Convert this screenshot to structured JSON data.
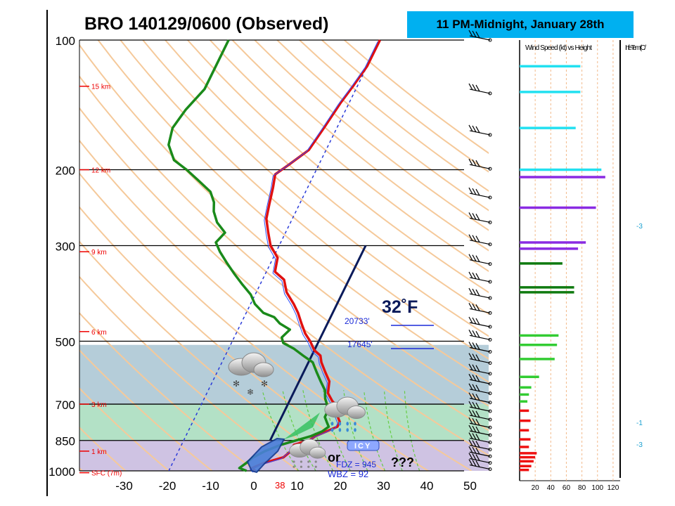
{
  "banner": {
    "text": "11 PM-Midnight, January 28th"
  },
  "title": {
    "text": "BRO   140129/0600  (Observed)"
  },
  "colors": {
    "temperature": "#e01010",
    "dewpoint": "#1a8a1a",
    "virtual_temp": "#3050ff",
    "freezing_line": "#0a1a5a",
    "snow_layer": "#a8c4d2",
    "melt_layer": "#a6dcbc",
    "refreeze_layer": "#c7b8de",
    "isotherm_dash": "#2a3ad8",
    "dry_adiabat": "#f5c99a",
    "moist_adiabat": "#66cc44",
    "wind_cyan": "#22e0f0",
    "wind_purple": "#8a2be2",
    "wind_dkgreen": "#0f7a0f",
    "wind_green": "#33cc33",
    "wind_red": "#ee1111"
  },
  "chart_data": {
    "type": "line",
    "title": "BRO   140129/0600  (Observed)",
    "xlabel": "",
    "ylabel": "",
    "xlim": [
      -40,
      50
    ],
    "ylim": [
      1000,
      100
    ],
    "y_scale": "log",
    "grid": true,
    "x_ticks": [
      "-30",
      "-20",
      "-10",
      "0",
      "10",
      "20",
      "30",
      "40",
      "50"
    ],
    "y_ticks": [
      "100",
      "200",
      "300",
      "500",
      "700",
      "850",
      "1000"
    ],
    "height_labels": [
      {
        "label": "15 km",
        "p": 128
      },
      {
        "label": "12 km",
        "p": 200
      },
      {
        "label": "9 km",
        "p": 310
      },
      {
        "label": "6 km",
        "p": 475
      },
      {
        "label": "3 km",
        "p": 700
      },
      {
        "label": "1 km",
        "p": 900
      },
      {
        "label": "SFC (7m)",
        "p": 1010
      }
    ],
    "series": [
      {
        "name": "Temperature",
        "points": [
          [
            0,
            1000
          ],
          [
            -1,
            985
          ],
          [
            1,
            960
          ],
          [
            5,
            930
          ],
          [
            6,
            900
          ],
          [
            6,
            870
          ],
          [
            9,
            850
          ],
          [
            10,
            830
          ],
          [
            12,
            810
          ],
          [
            14,
            790
          ],
          [
            14,
            770
          ],
          [
            13,
            750
          ],
          [
            12,
            730
          ],
          [
            11,
            700
          ],
          [
            10,
            690
          ],
          [
            8,
            660
          ],
          [
            7,
            620
          ],
          [
            5,
            590
          ],
          [
            3,
            560
          ],
          [
            2,
            540
          ],
          [
            0,
            525
          ],
          [
            -2,
            500
          ],
          [
            -4,
            480
          ],
          [
            -6,
            455
          ],
          [
            -8,
            430
          ],
          [
            -10,
            410
          ],
          [
            -13,
            385
          ],
          [
            -15,
            360
          ],
          [
            -18,
            345
          ],
          [
            -19,
            320
          ],
          [
            -22,
            300
          ],
          [
            -24,
            280
          ],
          [
            -26,
            260
          ],
          [
            -27,
            240
          ],
          [
            -28,
            220
          ],
          [
            -29,
            205
          ],
          [
            -27,
            195
          ],
          [
            -24,
            180
          ],
          [
            -23,
            160
          ],
          [
            -22,
            140
          ],
          [
            -21,
            128
          ],
          [
            -20,
            115
          ],
          [
            -20,
            100
          ]
        ]
      },
      {
        "name": "Dewpoint",
        "points": [
          [
            -2,
            1000
          ],
          [
            -4,
            985
          ],
          [
            -3,
            960
          ],
          [
            -2,
            930
          ],
          [
            0,
            900
          ],
          [
            3,
            870
          ],
          [
            6,
            850
          ],
          [
            9,
            830
          ],
          [
            11,
            810
          ],
          [
            12,
            790
          ],
          [
            11,
            770
          ],
          [
            10,
            750
          ],
          [
            10,
            730
          ],
          [
            9,
            700
          ],
          [
            8,
            680
          ],
          [
            7,
            650
          ],
          [
            5,
            620
          ],
          [
            3,
            590
          ],
          [
            1,
            560
          ],
          [
            -2,
            540
          ],
          [
            -5,
            520
          ],
          [
            -8,
            505
          ],
          [
            -9,
            490
          ],
          [
            -8,
            470
          ],
          [
            -11,
            455
          ],
          [
            -13,
            440
          ],
          [
            -16,
            430
          ],
          [
            -19,
            410
          ],
          [
            -21,
            390
          ],
          [
            -24,
            370
          ],
          [
            -27,
            350
          ],
          [
            -30,
            330
          ],
          [
            -33,
            310
          ],
          [
            -35,
            295
          ],
          [
            -34,
            280
          ],
          [
            -37,
            265
          ],
          [
            -39,
            250
          ],
          [
            -40,
            238
          ],
          [
            -42,
            225
          ],
          [
            -46,
            212
          ],
          [
            -50,
            200
          ],
          [
            -54,
            190
          ],
          [
            -57,
            175
          ],
          [
            -58,
            160
          ],
          [
            -57,
            145
          ],
          [
            -55,
            130
          ],
          [
            -55,
            115
          ],
          [
            -55,
            100
          ]
        ]
      }
    ],
    "isotherm_32F": {
      "label": "32˚F",
      "temp_c": 0,
      "p_top": 300,
      "p_bottom": 850
    },
    "isotherm_dashed": {
      "temp_c": -20
    },
    "layers": [
      {
        "name": "snow",
        "p_top": 510,
        "p_bottom": 700
      },
      {
        "name": "melting",
        "p_top": 700,
        "p_bottom": 850
      },
      {
        "name": "refreezing",
        "p_top": 850,
        "p_bottom": 1000
      }
    ],
    "annotations": [
      {
        "text": "20733'",
        "p": 470,
        "t": 10
      },
      {
        "text": "17645'",
        "p": 505,
        "t": 10
      },
      {
        "text": "ICY",
        "p": 900,
        "t": 13
      },
      {
        "text": "or",
        "p": 930,
        "t": 1
      },
      {
        "text": "???",
        "p": 940,
        "t": 22
      },
      {
        "text": "FDZ = 945",
        "p": 955,
        "t": 7
      },
      {
        "text": "WBZ = 92",
        "p": 975,
        "t": 7
      },
      {
        "text": "38",
        "p": 1030,
        "t": 0
      }
    ],
    "wind_profile": {
      "title": "Wind Speed (kt) vs Height",
      "x_ticks": [
        "20",
        "40",
        "60",
        "80",
        "100",
        "120"
      ],
      "xlim": [
        0,
        130
      ],
      "bars": [
        {
          "p": 115,
          "kt": 78,
          "color": "cyan"
        },
        {
          "p": 132,
          "kt": 78,
          "color": "cyan"
        },
        {
          "p": 160,
          "kt": 72,
          "color": "cyan"
        },
        {
          "p": 200,
          "kt": 105,
          "color": "cyan"
        },
        {
          "p": 208,
          "kt": 110,
          "color": "purple"
        },
        {
          "p": 245,
          "kt": 98,
          "color": "purple"
        },
        {
          "p": 295,
          "kt": 85,
          "color": "purple"
        },
        {
          "p": 305,
          "kt": 75,
          "color": "purple"
        },
        {
          "p": 330,
          "kt": 55,
          "color": "dkgreen"
        },
        {
          "p": 375,
          "kt": 70,
          "color": "dkgreen"
        },
        {
          "p": 385,
          "kt": 70,
          "color": "dkgreen"
        },
        {
          "p": 485,
          "kt": 50,
          "color": "green"
        },
        {
          "p": 510,
          "kt": 48,
          "color": "green"
        },
        {
          "p": 550,
          "kt": 45,
          "color": "green"
        },
        {
          "p": 605,
          "kt": 25,
          "color": "green"
        },
        {
          "p": 640,
          "kt": 15,
          "color": "green"
        },
        {
          "p": 665,
          "kt": 12,
          "color": "green"
        },
        {
          "p": 690,
          "kt": 10,
          "color": "green"
        },
        {
          "p": 725,
          "kt": 12,
          "color": "red"
        },
        {
          "p": 765,
          "kt": 14,
          "color": "red"
        },
        {
          "p": 805,
          "kt": 12,
          "color": "red"
        },
        {
          "p": 845,
          "kt": 14,
          "color": "red"
        },
        {
          "p": 880,
          "kt": 12,
          "color": "red"
        },
        {
          "p": 910,
          "kt": 22,
          "color": "red"
        },
        {
          "p": 930,
          "kt": 20,
          "color": "red"
        },
        {
          "p": 950,
          "kt": 18,
          "color": "red"
        },
        {
          "p": 975,
          "kt": 15,
          "color": "red"
        },
        {
          "p": 995,
          "kt": 12,
          "color": "red"
        }
      ]
    },
    "right_panel": {
      "title": "Infe Tem (C /",
      "ticks": [
        "-3",
        "-1",
        "-3"
      ]
    }
  },
  "icons": [
    "snow-cloud-icon",
    "rain-cloud-icon",
    "sleet-cloud-icon"
  ]
}
